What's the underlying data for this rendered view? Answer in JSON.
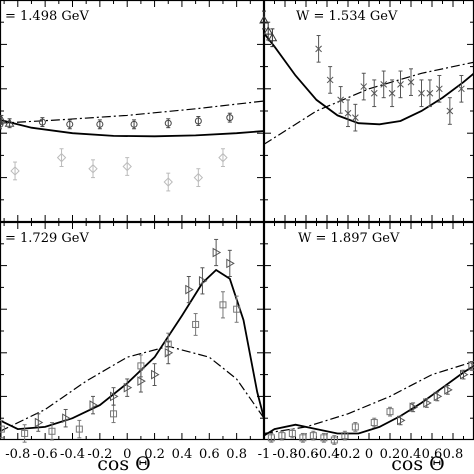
{
  "chart_data": [
    {
      "type": "scatter",
      "panel_label": "= 1.498 GeV",
      "xlim": [
        -0.93,
        1.0
      ],
      "ylim": [
        0,
        1
      ],
      "x_tick_labels": [],
      "curves": [
        {
          "style": "solid",
          "x": [
            -0.93,
            -0.7,
            -0.4,
            -0.1,
            0.2,
            0.5,
            0.8,
            1.0
          ],
          "y": [
            0.46,
            0.425,
            0.4,
            0.388,
            0.386,
            0.39,
            0.4,
            0.41
          ]
        },
        {
          "style": "dashdot",
          "x": [
            -0.93,
            -0.5,
            0.0,
            0.5,
            1.0
          ],
          "y": [
            0.445,
            0.46,
            0.48,
            0.51,
            0.545
          ]
        }
      ],
      "series": [
        {
          "marker": "circle",
          "color": "#444444",
          "x": [
            -0.93,
            -0.62,
            -0.42,
            -0.2,
            0.05,
            0.3,
            0.52,
            0.75
          ],
          "y": [
            0.44,
            0.45,
            0.44,
            0.44,
            0.44,
            0.445,
            0.455,
            0.47
          ],
          "err": [
            0.02,
            0.02,
            0.02,
            0.02,
            0.02,
            0.02,
            0.02,
            0.02
          ]
        },
        {
          "marker": "triangle",
          "color": "#444444",
          "x": [
            -0.92,
            -0.86
          ],
          "y": [
            0.46,
            0.445
          ],
          "err": [
            0.02,
            0.02
          ]
        },
        {
          "marker": "diamond",
          "color": "#bbbbbb",
          "x": [
            -0.82,
            -0.48,
            -0.25,
            0.0,
            0.3,
            0.52,
            0.7
          ],
          "y": [
            0.23,
            0.29,
            0.24,
            0.25,
            0.18,
            0.2,
            0.29
          ],
          "err": [
            0.04,
            0.04,
            0.04,
            0.04,
            0.04,
            0.04,
            0.04
          ]
        }
      ]
    },
    {
      "type": "scatter",
      "panel_label": "W = 1.534 GeV",
      "xlim": [
        -1,
        1.0
      ],
      "ylim": [
        0,
        1
      ],
      "x_tick_labels": [],
      "curves": [
        {
          "style": "solid",
          "x": [
            -1.0,
            -0.9,
            -0.7,
            -0.5,
            -0.3,
            -0.1,
            0.1,
            0.3,
            0.5,
            0.7,
            0.9,
            1.0
          ],
          "y": [
            0.85,
            0.79,
            0.66,
            0.55,
            0.48,
            0.445,
            0.44,
            0.455,
            0.5,
            0.56,
            0.63,
            0.67
          ]
        },
        {
          "style": "dashdot",
          "x": [
            -1.0,
            -0.5,
            0.0,
            0.5,
            1.0
          ],
          "y": [
            0.35,
            0.5,
            0.6,
            0.67,
            0.72
          ]
        }
      ],
      "series": [
        {
          "marker": "triangle",
          "color": "#333333",
          "x": [
            -1.0,
            -0.96,
            -0.92
          ],
          "y": [
            0.91,
            0.86,
            0.83
          ],
          "err": [
            0.04,
            0.04,
            0.04
          ]
        },
        {
          "marker": "cross",
          "color": "#555555",
          "x": [
            -0.48,
            -0.37,
            -0.27,
            -0.2,
            -0.13,
            -0.05,
            0.05,
            0.14,
            0.22,
            0.3,
            0.4,
            0.5,
            0.58,
            0.67,
            0.77,
            0.88
          ],
          "y": [
            0.78,
            0.64,
            0.55,
            0.49,
            0.47,
            0.61,
            0.58,
            0.62,
            0.58,
            0.62,
            0.63,
            0.58,
            0.58,
            0.6,
            0.5,
            0.6
          ],
          "err": [
            0.06,
            0.06,
            0.06,
            0.06,
            0.06,
            0.06,
            0.06,
            0.06,
            0.06,
            0.06,
            0.06,
            0.06,
            0.06,
            0.06,
            0.06,
            0.06
          ]
        }
      ]
    },
    {
      "type": "scatter",
      "panel_label": "= 1.729 GeV",
      "xlim": [
        -0.93,
        1.0
      ],
      "ylim": [
        0,
        1
      ],
      "x_tick_labels": [
        "-0.8",
        "-0.6",
        "-0.4",
        "-0.2",
        "0",
        "0.2",
        "0.4",
        "0.6",
        "0.8"
      ],
      "curves": [
        {
          "style": "solid",
          "x": [
            -0.93,
            -0.8,
            -0.6,
            -0.4,
            -0.2,
            0.0,
            0.2,
            0.4,
            0.55,
            0.65,
            0.75,
            0.85,
            0.95,
            1.0
          ],
          "y": [
            0.09,
            0.05,
            0.06,
            0.1,
            0.16,
            0.26,
            0.38,
            0.57,
            0.72,
            0.78,
            0.74,
            0.55,
            0.22,
            0.1
          ]
        },
        {
          "style": "dashdot",
          "x": [
            -0.93,
            -0.6,
            -0.3,
            0.0,
            0.3,
            0.6,
            0.8,
            1.0
          ],
          "y": [
            0.04,
            0.14,
            0.27,
            0.38,
            0.43,
            0.38,
            0.28,
            0.1
          ]
        }
      ],
      "series": [
        {
          "marker": "square",
          "color": "#777777",
          "x": [
            -0.92,
            -0.75,
            -0.55,
            -0.35,
            -0.1,
            0.1,
            0.3,
            0.5,
            0.7,
            0.8
          ],
          "y": [
            0.05,
            0.03,
            0.04,
            0.05,
            0.12,
            0.34,
            0.44,
            0.53,
            0.62,
            0.6
          ],
          "err": [
            0.04,
            0.04,
            0.04,
            0.04,
            0.04,
            0.05,
            0.05,
            0.05,
            0.06,
            0.06
          ]
        },
        {
          "marker": "triangle-right",
          "color": "#555555",
          "x": [
            -0.65,
            -0.45,
            -0.25,
            -0.1,
            0.0,
            0.1,
            0.2,
            0.3,
            0.45,
            0.55,
            0.65,
            0.75
          ],
          "y": [
            0.08,
            0.1,
            0.16,
            0.2,
            0.24,
            0.27,
            0.3,
            0.4,
            0.69,
            0.73,
            0.86,
            0.81
          ],
          "err": [
            0.04,
            0.04,
            0.04,
            0.04,
            0.04,
            0.05,
            0.05,
            0.05,
            0.06,
            0.06,
            0.06,
            0.06
          ]
        }
      ]
    },
    {
      "type": "scatter",
      "panel_label": "W = 1.897 GeV",
      "xlim": [
        -1,
        1.0
      ],
      "ylim": [
        0,
        1
      ],
      "x_tick_labels": [
        "-1",
        "-0.8",
        "-0.6",
        "-0.4",
        "-0.2",
        "0",
        "0.2",
        "0.4",
        "0.6",
        "0.8"
      ],
      "curves": [
        {
          "style": "solid",
          "x": [
            -1.0,
            -0.9,
            -0.7,
            -0.5,
            -0.3,
            -0.1,
            0.1,
            0.3,
            0.5,
            0.7,
            0.9,
            1.0
          ],
          "y": [
            0.02,
            0.05,
            0.07,
            0.05,
            0.03,
            0.03,
            0.06,
            0.11,
            0.17,
            0.24,
            0.31,
            0.34
          ]
        },
        {
          "style": "dashdot",
          "x": [
            -1.0,
            -0.6,
            -0.2,
            0.2,
            0.6,
            1.0
          ],
          "y": [
            0.03,
            0.06,
            0.12,
            0.2,
            0.3,
            0.36
          ]
        }
      ],
      "series": [
        {
          "marker": "square",
          "color": "#777777",
          "x": [
            -0.93,
            -0.83,
            -0.73,
            -0.63,
            -0.53,
            -0.43,
            -0.33,
            -0.23,
            -0.13,
            0.05,
            0.2
          ],
          "y": [
            0.01,
            0.02,
            0.03,
            0.01,
            0.02,
            0.01,
            0.0,
            0.02,
            0.06,
            0.08,
            0.13
          ],
          "err": [
            0.02,
            0.02,
            0.02,
            0.02,
            0.02,
            0.02,
            0.02,
            0.02,
            0.02,
            0.02,
            0.02
          ]
        },
        {
          "marker": "triangle-right",
          "color": "#555555",
          "x": [
            0.3,
            0.42,
            0.55,
            0.65,
            0.75,
            0.9,
            0.98
          ],
          "y": [
            0.09,
            0.15,
            0.17,
            0.2,
            0.23,
            0.3,
            0.34
          ],
          "err": [
            0.02,
            0.02,
            0.02,
            0.02,
            0.02,
            0.02,
            0.02
          ]
        }
      ]
    }
  ],
  "x_axis_title": "cos Θ"
}
